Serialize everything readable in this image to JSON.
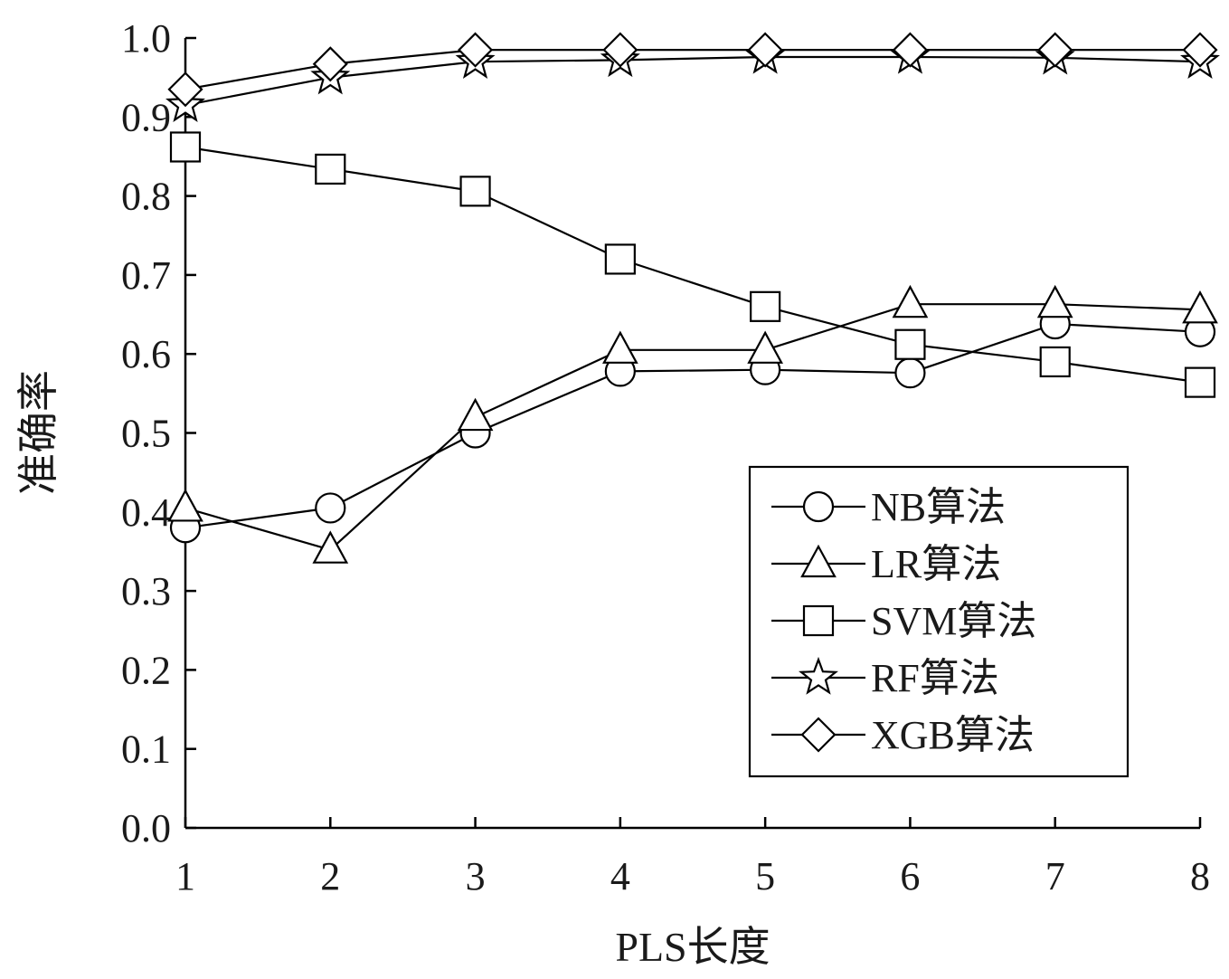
{
  "chart_data": {
    "type": "line",
    "xlabel": "PLS长度",
    "ylabel": "准确率",
    "x": [
      1,
      2,
      3,
      4,
      5,
      6,
      7,
      8
    ],
    "xlim": [
      1,
      8
    ],
    "ylim": [
      0.0,
      1.0
    ],
    "yticks": [
      "0.0",
      "0.1",
      "0.2",
      "0.3",
      "0.4",
      "0.5",
      "0.6",
      "0.7",
      "0.8",
      "0.9",
      "1.0"
    ],
    "xticks": [
      "1",
      "2",
      "3",
      "4",
      "5",
      "6",
      "7",
      "8"
    ],
    "grid": false,
    "legend_position": "bottom-right",
    "series": [
      {
        "name": "NB算法",
        "marker": "circle",
        "values": [
          0.38,
          0.405,
          0.5,
          0.578,
          0.58,
          0.576,
          0.638,
          0.628
        ]
      },
      {
        "name": "LR算法",
        "marker": "triangle",
        "values": [
          0.405,
          0.352,
          0.52,
          0.605,
          0.605,
          0.663,
          0.663,
          0.656
        ]
      },
      {
        "name": "SVM算法",
        "marker": "square",
        "values": [
          0.862,
          0.834,
          0.806,
          0.72,
          0.66,
          0.612,
          0.59,
          0.564
        ]
      },
      {
        "name": "RF算法",
        "marker": "star",
        "values": [
          0.915,
          0.95,
          0.97,
          0.972,
          0.976,
          0.976,
          0.975,
          0.97
        ]
      },
      {
        "name": "XGB算法",
        "marker": "diamond",
        "values": [
          0.935,
          0.967,
          0.985,
          0.985,
          0.985,
          0.985,
          0.985,
          0.985
        ]
      }
    ]
  }
}
